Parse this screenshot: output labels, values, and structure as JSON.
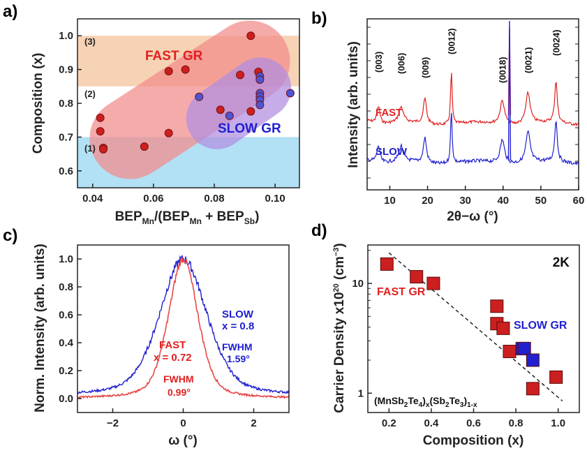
{
  "panels": {
    "a": "a)",
    "b": "b)",
    "c": "c)",
    "d": "d)"
  },
  "colors": {
    "red": "#e02020",
    "blue": "#2020d0",
    "red_dot": "#cc1f1f",
    "blue_dot": "#4a56d6",
    "orange_band": "#f7d3b5",
    "blue_band": "#b2e0f5",
    "red_region": "#f28a8a",
    "blue_region": "#b08ee0",
    "fwhm_red": "#e84848"
  },
  "chart_data": [
    {
      "id": "a",
      "type": "scatter",
      "xlabel": "BEP",
      "xlabel_parts": [
        "BEP",
        "Mn",
        "/(BEP",
        "Mn",
        " + BEP",
        "Sb",
        ")"
      ],
      "ylabel": "Composition (x)",
      "xlim": [
        0.035,
        0.108
      ],
      "ylim": [
        0.55,
        1.05
      ],
      "xticks": [
        "0.04",
        "0.06",
        "0.08",
        "0.10"
      ],
      "xtick_values": [
        0.04,
        0.06,
        0.08,
        0.1
      ],
      "yticks": [
        "0.6",
        "0.7",
        "0.8",
        "0.9",
        "1.0"
      ],
      "ytick_values": [
        0.6,
        0.7,
        0.8,
        0.9,
        1.0
      ],
      "bands": [
        {
          "label": "(3)",
          "y_from": 0.85,
          "y_to": 1.0,
          "color": "orange_band"
        },
        {
          "label": "(2)",
          "y_from": 0.7,
          "y_to": 0.85,
          "color": "white"
        },
        {
          "label": "(1)",
          "y_from": 0.55,
          "y_to": 0.7,
          "color": "blue_band"
        }
      ],
      "region_labels": [
        "FAST GR",
        "SLOW GR"
      ],
      "series": [
        {
          "name": "FAST GR",
          "color": "red_dot",
          "x": [
            0.0425,
            0.0425,
            0.0435,
            0.0435,
            0.057,
            0.065,
            0.065,
            0.0705,
            0.082,
            0.0885,
            0.092,
            0.092,
            0.0945
          ],
          "y": [
            0.757,
            0.717,
            0.668,
            0.664,
            0.672,
            0.895,
            0.712,
            0.9,
            0.781,
            0.884,
            1.0,
            0.776,
            0.893
          ]
        },
        {
          "name": "SLOW GR",
          "color": "blue_dot",
          "x": [
            0.075,
            0.085,
            0.095,
            0.095,
            0.095,
            0.095,
            0.095,
            0.095,
            0.105
          ],
          "y": [
            0.819,
            0.763,
            0.88,
            0.87,
            0.83,
            0.82,
            0.81,
            0.795,
            0.83
          ]
        }
      ]
    },
    {
      "id": "b",
      "type": "line",
      "xlabel": "2θ−ω (°)",
      "ylabel": "Intensity (arb. units)",
      "xlim": [
        4,
        60
      ],
      "xticks": [
        "10",
        "20",
        "30",
        "40",
        "50",
        "60"
      ],
      "xtick_values": [
        10,
        20,
        30,
        40,
        50,
        60
      ],
      "peaks": [
        {
          "label": "(003)",
          "x": 7.0
        },
        {
          "label": "(006)",
          "x": 13.0
        },
        {
          "label": "(009)",
          "x": 19.3
        },
        {
          "label": "(0012)",
          "x": 26.3
        },
        {
          "label": "(0018)",
          "x": 39.8
        },
        {
          "label": "(0021)",
          "x": 46.6
        },
        {
          "label": "(0024)",
          "x": 54.0
        }
      ],
      "substrate_peak_x": 41.7,
      "series": [
        {
          "name": "FAST",
          "color": "red"
        },
        {
          "name": "SLOW",
          "color": "blue"
        }
      ]
    },
    {
      "id": "c",
      "type": "line",
      "xlabel": "ω (°)",
      "ylabel": "Norm. Intensity (arb. units)",
      "xlim": [
        -3,
        3
      ],
      "ylim": [
        -0.1,
        1.1
      ],
      "xticks": [
        "−2",
        "0",
        "2"
      ],
      "xtick_values": [
        -2,
        0,
        2
      ],
      "yticks": [
        "0.0",
        "0.2",
        "0.4",
        "0.6",
        "0.8",
        "1.0"
      ],
      "ytick_values": [
        0,
        0.2,
        0.4,
        0.6,
        0.8,
        1.0
      ],
      "series": [
        {
          "name": "SLOW",
          "color": "blue",
          "composition": "x = 0.8",
          "fwhm_label": "FWHM",
          "fwhm": "1.59°",
          "fwhm_value": 1.59
        },
        {
          "name": "FAST",
          "color": "fwhm_red",
          "composition": "x = 0.72",
          "fwhm_label": "FWHM",
          "fwhm": "0.99°",
          "fwhm_value": 0.99
        }
      ]
    },
    {
      "id": "d",
      "type": "scatter",
      "xlabel": "Composition (x)",
      "ylabel_parts": [
        "Carrier Density x10",
        "20",
        " (cm",
        "−3",
        ")"
      ],
      "xlim": [
        0.1,
        1.1
      ],
      "ylim_log10": [
        -0.176,
        1.35
      ],
      "xticks": [
        "0.2",
        "0.4",
        "0.6",
        "0.8",
        "1.0"
      ],
      "xtick_values": [
        0.2,
        0.4,
        0.6,
        0.8,
        1.0
      ],
      "yticks": [
        "1",
        "10"
      ],
      "ytick_values": [
        1,
        10
      ],
      "temperature": "2K",
      "formula_parts": [
        "(MnSb",
        "2",
        "Te",
        "4",
        ")",
        "x",
        "(Sb",
        "2",
        "Te",
        "3",
        ")",
        "1-x"
      ],
      "series": [
        {
          "name": "FAST GR",
          "color": "red_dot",
          "x": [
            0.19,
            0.33,
            0.41,
            0.71,
            0.71,
            0.74,
            0.77,
            0.88,
            0.99
          ],
          "y": [
            15.0,
            11.5,
            10.0,
            6.2,
            4.3,
            3.9,
            2.4,
            1.1,
            1.4
          ]
        },
        {
          "name": "SLOW GR",
          "color": "blue",
          "x": [
            0.83,
            0.84,
            0.88
          ],
          "y": [
            2.55,
            2.55,
            2.0
          ]
        }
      ],
      "trend": {
        "x": [
          0.2,
          1.02
        ],
        "y": [
          19.0,
          0.85
        ]
      }
    }
  ]
}
